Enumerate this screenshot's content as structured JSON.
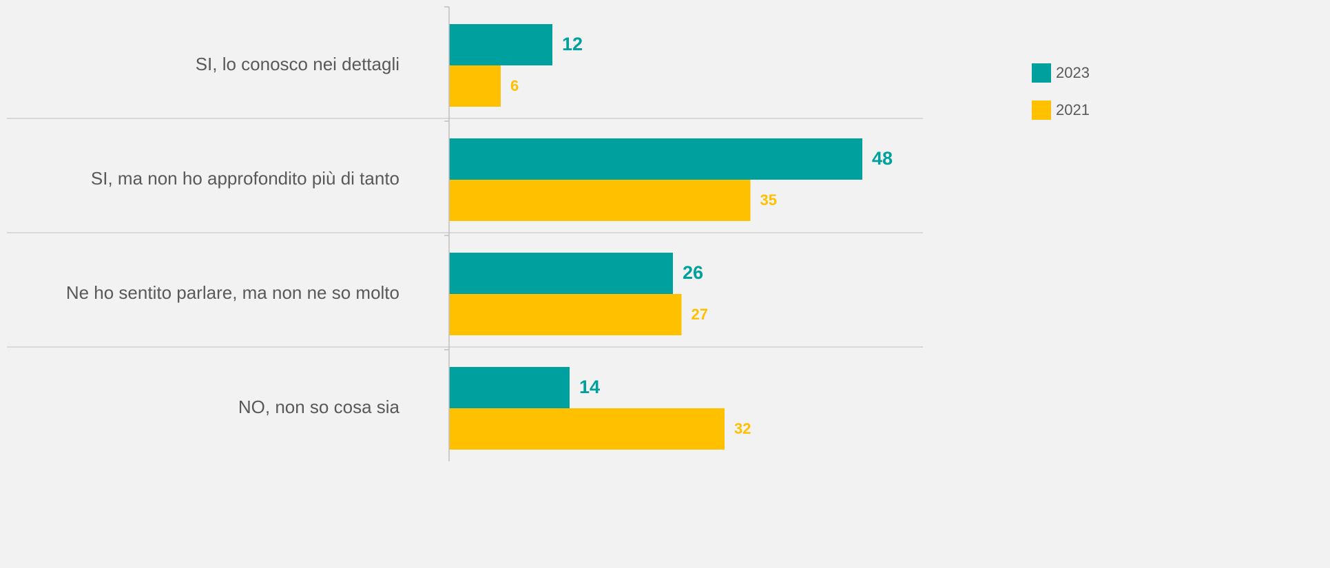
{
  "chart_data": {
    "type": "hbar",
    "categories": [
      "SI, lo conosco nei dettagli",
      "SI, ma non ho approfondito più di tanto",
      "Ne ho sentito parlare, ma non ne so molto",
      "NO, non so cosa sia"
    ],
    "series": [
      {
        "name": "2023",
        "color": "#00a09e",
        "values": [
          12,
          48,
          26,
          14
        ]
      },
      {
        "name": "2021",
        "color": "#ffc000",
        "values": [
          6,
          35,
          27,
          32
        ]
      }
    ],
    "xlim": [
      0,
      55
    ],
    "legend": "right"
  }
}
